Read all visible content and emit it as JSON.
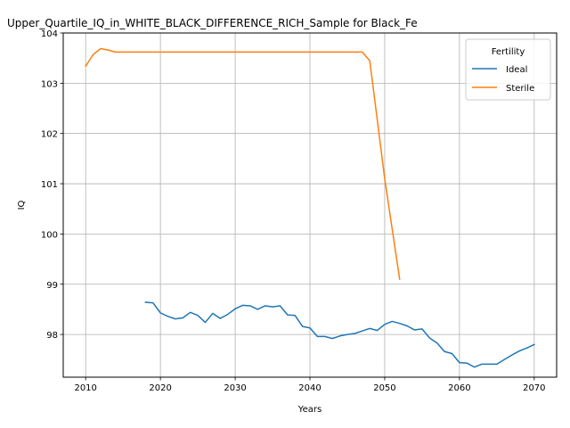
{
  "chart_data": {
    "type": "line",
    "title": "Upper_Quartile_IQ_in_WHITE_BLACK_DIFFERENCE_RICH_Sample for Black_Fe",
    "xlabel": "Years",
    "ylabel": "IQ",
    "xlim": [
      2007,
      2073
    ],
    "ylim": [
      97.15,
      104.0
    ],
    "xticks": [
      2010,
      2020,
      2030,
      2040,
      2050,
      2060,
      2070
    ],
    "yticks": [
      98,
      99,
      100,
      101,
      102,
      103,
      104
    ],
    "grid": true,
    "legend": {
      "title": "Fertility",
      "placement": "top-right"
    },
    "series": [
      {
        "name": "Ideal",
        "color": "#1f77b4",
        "x": [
          2018,
          2019,
          2020,
          2021,
          2022,
          2023,
          2024,
          2025,
          2026,
          2027,
          2028,
          2029,
          2030,
          2031,
          2032,
          2033,
          2034,
          2035,
          2036,
          2037,
          2038,
          2039,
          2040,
          2041,
          2042,
          2043,
          2044,
          2045,
          2046,
          2047,
          2048,
          2049,
          2050,
          2051,
          2052,
          2053,
          2054,
          2055,
          2056,
          2057,
          2058,
          2059,
          2060,
          2061,
          2062,
          2063,
          2064,
          2065,
          2066,
          2067,
          2068,
          2069,
          2070
        ],
        "values": [
          98.64,
          98.63,
          98.43,
          98.36,
          98.31,
          98.33,
          98.44,
          98.38,
          98.24,
          98.42,
          98.32,
          98.4,
          98.51,
          98.58,
          98.57,
          98.5,
          98.57,
          98.55,
          98.57,
          98.39,
          98.38,
          98.16,
          98.13,
          97.96,
          97.96,
          97.92,
          97.97,
          98.0,
          98.02,
          98.07,
          98.12,
          98.08,
          98.2,
          98.26,
          98.22,
          98.17,
          98.09,
          98.11,
          97.93,
          97.83,
          97.66,
          97.62,
          97.44,
          97.43,
          97.35,
          97.41,
          97.41,
          97.41,
          97.5,
          97.59,
          97.67,
          97.73,
          97.8
        ]
      },
      {
        "name": "Sterile",
        "color": "#ff7f0e",
        "x": [
          2010,
          2011,
          2012,
          2013,
          2014,
          2015,
          2016,
          2017,
          2018,
          2019,
          2020,
          2021,
          2022,
          2023,
          2024,
          2025,
          2026,
          2027,
          2028,
          2029,
          2030,
          2031,
          2032,
          2033,
          2034,
          2035,
          2036,
          2037,
          2038,
          2039,
          2040,
          2041,
          2042,
          2043,
          2044,
          2045,
          2046,
          2047,
          2048,
          2049,
          2050,
          2051,
          2052
        ],
        "values": [
          103.34,
          103.57,
          103.69,
          103.66,
          103.62,
          103.62,
          103.62,
          103.62,
          103.62,
          103.62,
          103.62,
          103.62,
          103.62,
          103.62,
          103.62,
          103.62,
          103.62,
          103.62,
          103.62,
          103.62,
          103.62,
          103.62,
          103.62,
          103.62,
          103.62,
          103.62,
          103.62,
          103.62,
          103.62,
          103.62,
          103.62,
          103.62,
          103.62,
          103.62,
          103.62,
          103.62,
          103.62,
          103.62,
          103.45,
          102.28,
          101.1,
          100.1,
          99.1
        ]
      }
    ]
  }
}
